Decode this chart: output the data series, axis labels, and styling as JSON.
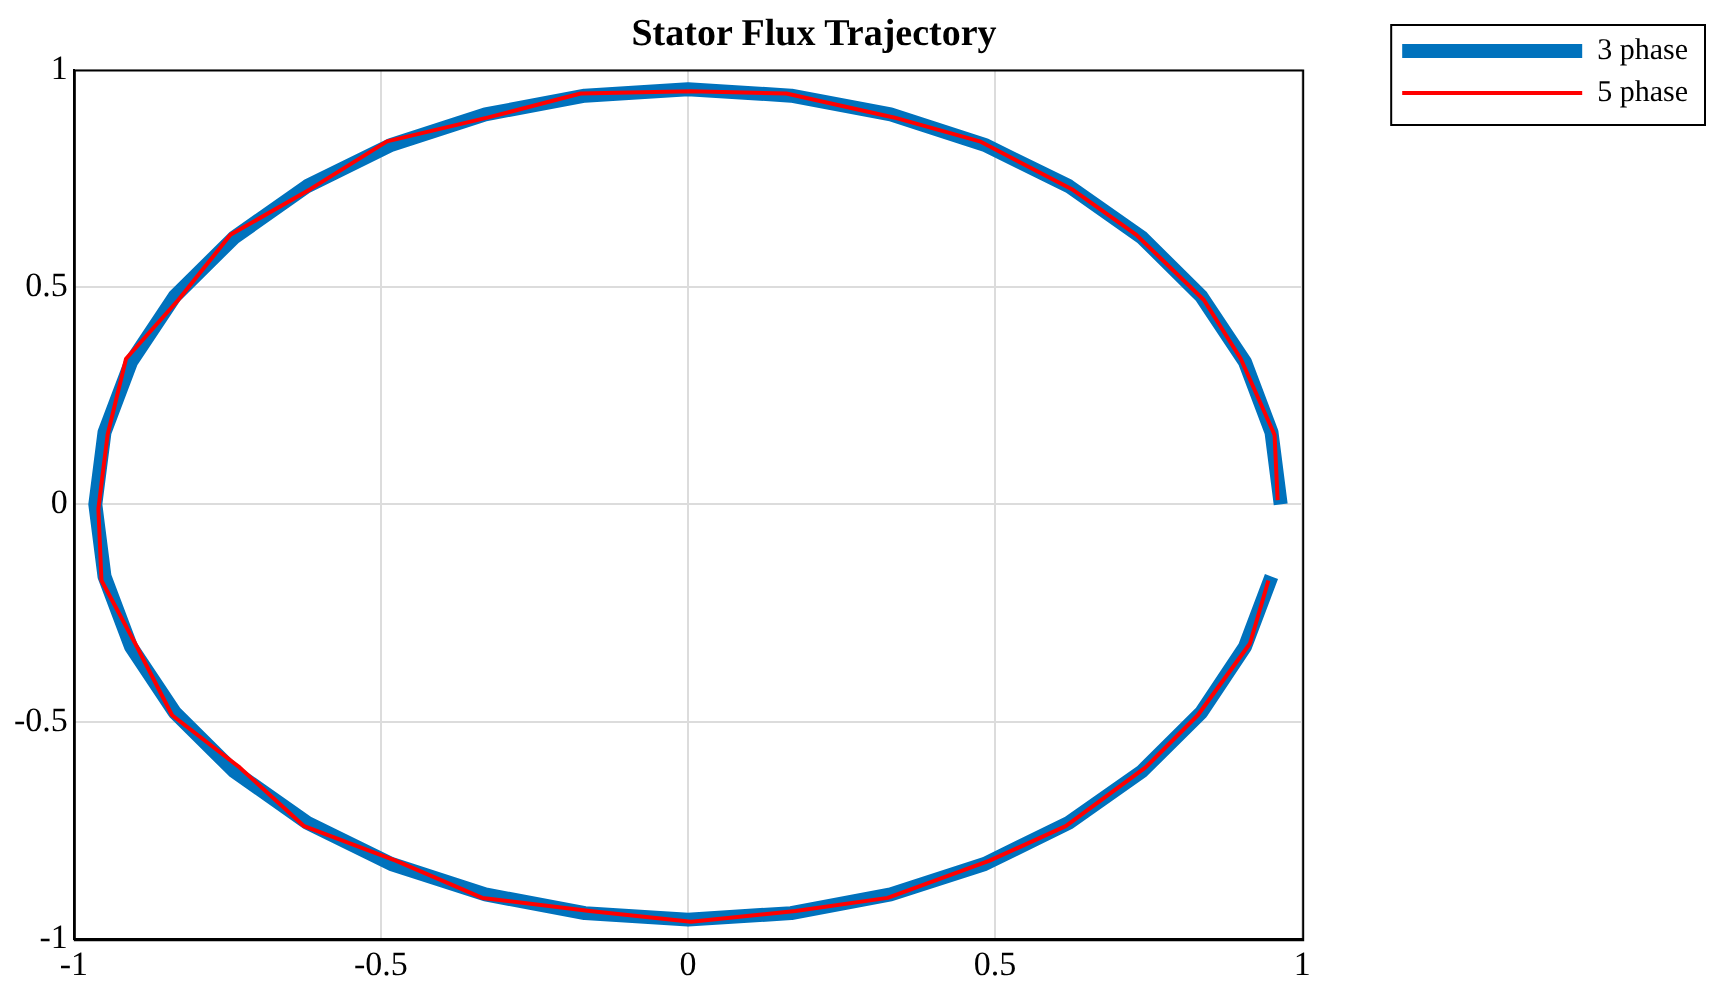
{
  "chart_data": {
    "type": "line",
    "title": "Stator Flux Trajectory",
    "xlim": [
      -1,
      1
    ],
    "ylim": [
      -1,
      1
    ],
    "xticks": [
      -1,
      -0.5,
      0,
      0.5,
      1
    ],
    "yticks": [
      -1,
      -0.5,
      0,
      0.5,
      1
    ],
    "grid": true,
    "legend": "top right",
    "marker": "none",
    "series": [
      {
        "name": "3 phase",
        "color": "#0072bd",
        "x": [
          0.965,
          0.95,
          0.907,
          0.836,
          0.739,
          0.62,
          0.483,
          0.33,
          0.168,
          0,
          -0.168,
          -0.33,
          -0.483,
          -0.62,
          -0.739,
          -0.836,
          -0.907,
          -0.95,
          -0.965,
          -0.95,
          -0.907,
          -0.836,
          -0.739,
          -0.62,
          -0.483,
          -0.33,
          -0.168,
          0,
          0.168,
          0.33,
          0.483,
          0.62,
          0.739,
          0.836,
          0.907,
          0.95
        ],
        "values": [
          0,
          0.166,
          0.327,
          0.478,
          0.614,
          0.732,
          0.827,
          0.897,
          0.94,
          0.955,
          0.94,
          0.897,
          0.827,
          0.732,
          0.614,
          0.478,
          0.327,
          0.166,
          0,
          -0.166,
          -0.327,
          -0.478,
          -0.614,
          -0.732,
          -0.827,
          -0.897,
          -0.94,
          -0.955,
          -0.94,
          -0.897,
          -0.827,
          -0.732,
          -0.614,
          -0.478,
          -0.327,
          -0.166
        ]
      },
      {
        "name": "5 phase",
        "color": "#ff0000",
        "x": [
          0.96,
          0.955,
          0.9,
          0.84,
          0.73,
          0.625,
          0.475,
          0.335,
          0.16,
          0.005,
          -0.175,
          -0.325,
          -0.49,
          -0.615,
          -0.745,
          -0.83,
          -0.915,
          -0.945,
          -0.96,
          -0.955,
          -0.9,
          -0.84,
          -0.73,
          -0.625,
          -0.475,
          -0.335,
          -0.16,
          0.005,
          0.175,
          0.325,
          0.49,
          0.615,
          0.745,
          0.83,
          0.915,
          0.945
        ],
        "values": [
          0.01,
          0.16,
          0.335,
          0.47,
          0.62,
          0.725,
          0.835,
          0.89,
          0.945,
          0.95,
          0.945,
          0.89,
          0.835,
          0.725,
          0.62,
          0.47,
          0.335,
          0.16,
          -0.01,
          -0.175,
          -0.32,
          -0.485,
          -0.605,
          -0.74,
          -0.82,
          -0.905,
          -0.935,
          -0.96,
          -0.935,
          -0.905,
          -0.82,
          -0.74,
          -0.605,
          -0.485,
          -0.32,
          -0.175
        ]
      }
    ]
  }
}
